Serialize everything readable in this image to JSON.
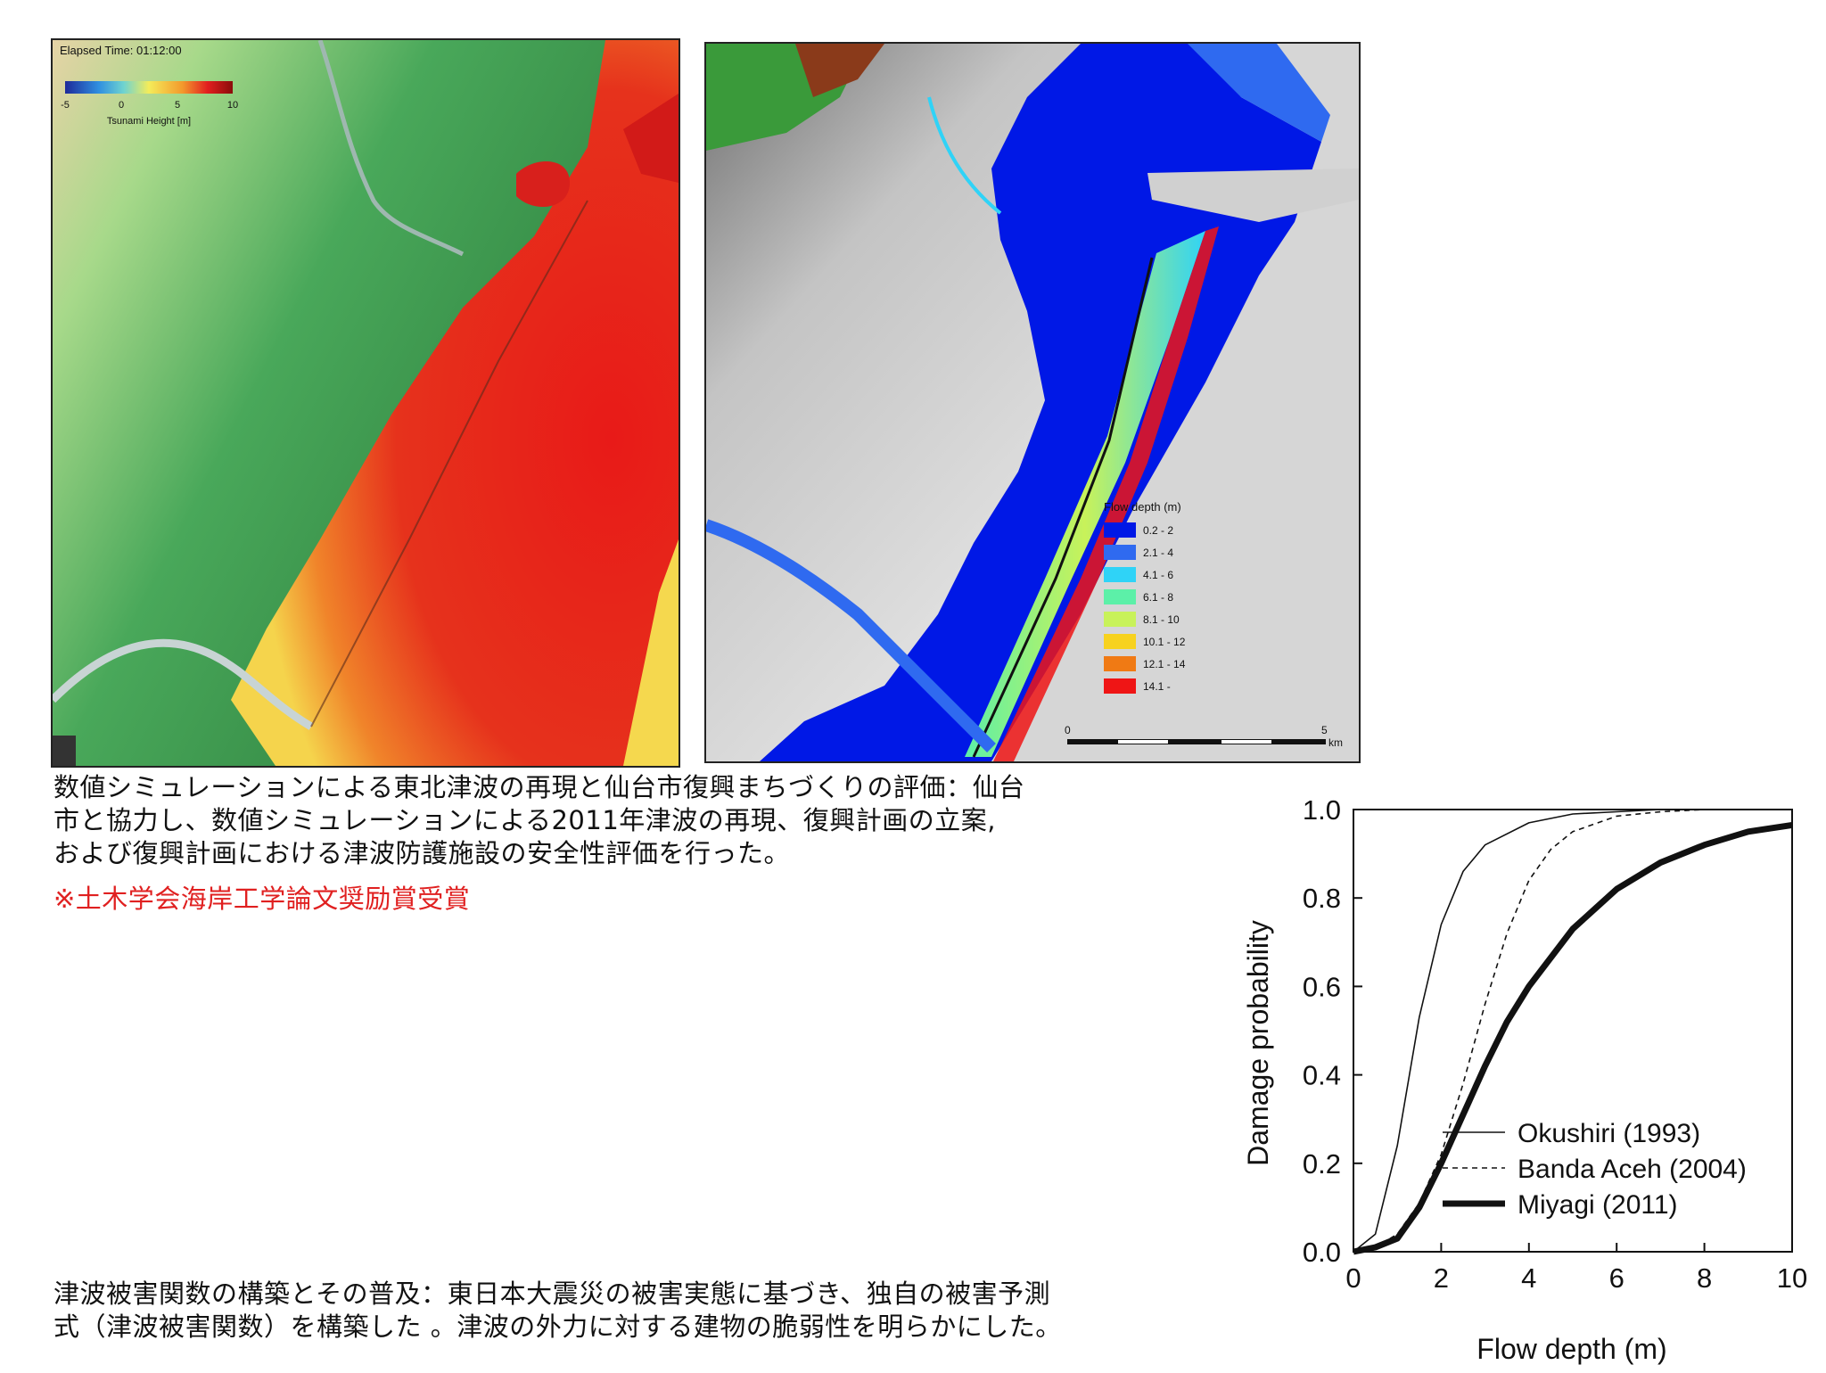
{
  "left_map": {
    "elapsed_label": "Elapsed Time: 01:12:00",
    "colorbar": {
      "ticks": [
        "-5",
        "0",
        "5",
        "10"
      ],
      "label": "Tsunami Height [m]",
      "colors": [
        "#1e2a9a",
        "#2f8fe0",
        "#6fd3d0",
        "#f4ec5a",
        "#f39a2c",
        "#e21f1f",
        "#8a0b0b"
      ]
    },
    "colors": {
      "land_dark": "#2f8a3e",
      "land_light": "#8fcf7a",
      "sea_high": "#e31e1b",
      "sea_mid": "#f47a21",
      "sea_low": "#f6d84a"
    }
  },
  "right_map": {
    "legend": {
      "title": "Flow depth (m)",
      "items": [
        {
          "label": "0.2 - 2",
          "color": "#0018e6"
        },
        {
          "label": "2.1 - 4",
          "color": "#2f6af0"
        },
        {
          "label": "4.1 - 6",
          "color": "#2fd3f7"
        },
        {
          "label": "6.1 - 8",
          "color": "#5cf0a8"
        },
        {
          "label": "8.1 - 10",
          "color": "#c8f25a"
        },
        {
          "label": "10.1 - 12",
          "color": "#f7d21e"
        },
        {
          "label": "12.1 - 14",
          "color": "#f07a14"
        },
        {
          "label": "14.1 -",
          "color": "#ef1515"
        }
      ]
    },
    "scalebar": {
      "start": "0",
      "end": "5",
      "unit": "km"
    }
  },
  "captions": {
    "top_lines": [
      "数値シミュレーションによる東北津波の再現と仙台市復興まちづくりの評価：仙台",
      "市と協力し、数値シミュレーションによる2011年津波の再現、復興計画の立案,",
      "および復興計画における津波防護施設の安全性評価を行った。"
    ],
    "award": "※土木学会海岸工学論文奨励賞受賞",
    "bottom_lines": [
      "津波被害関数の構築とその普及：東日本大震災の被害実態に基づき、独自の被害予測",
      "式（津波被害関数）を構築した 。津波の外力に対する建物の脆弱性を明らかにした。"
    ]
  },
  "chart_data": {
    "type": "line",
    "xlabel": "Flow depth (m)",
    "ylabel": "Damage probability",
    "xlim": [
      0,
      10
    ],
    "ylim": [
      0,
      1
    ],
    "xticks": [
      "0",
      "2",
      "4",
      "6",
      "8",
      "10"
    ],
    "yticks": [
      "0.0",
      "0.2",
      "0.4",
      "0.6",
      "0.8",
      "1.0"
    ],
    "legend_position": "bottom-right",
    "series": [
      {
        "name": "Okushiri (1993)",
        "style": "thin-solid",
        "x": [
          0,
          0.5,
          1,
          1.5,
          2,
          2.5,
          3,
          4,
          5,
          6,
          7,
          8,
          10
        ],
        "y": [
          0.0,
          0.04,
          0.24,
          0.53,
          0.74,
          0.86,
          0.92,
          0.97,
          0.99,
          0.995,
          1.0,
          1.0,
          1.0
        ]
      },
      {
        "name": "Banda Aceh (2004)",
        "style": "dashed",
        "x": [
          0,
          0.5,
          1,
          1.5,
          2,
          2.5,
          3,
          3.5,
          4,
          4.5,
          5,
          6,
          7,
          8,
          10
        ],
        "y": [
          0.0,
          0.01,
          0.04,
          0.11,
          0.22,
          0.38,
          0.56,
          0.72,
          0.84,
          0.91,
          0.95,
          0.985,
          0.995,
          1.0,
          1.0
        ]
      },
      {
        "name": "Miyagi (2011)",
        "style": "thick-solid",
        "x": [
          0,
          0.5,
          1,
          1.5,
          2,
          2.5,
          3,
          3.5,
          4,
          5,
          6,
          7,
          8,
          9,
          10
        ],
        "y": [
          0.0,
          0.01,
          0.03,
          0.1,
          0.2,
          0.31,
          0.42,
          0.52,
          0.6,
          0.73,
          0.82,
          0.88,
          0.92,
          0.95,
          0.965
        ]
      }
    ]
  }
}
